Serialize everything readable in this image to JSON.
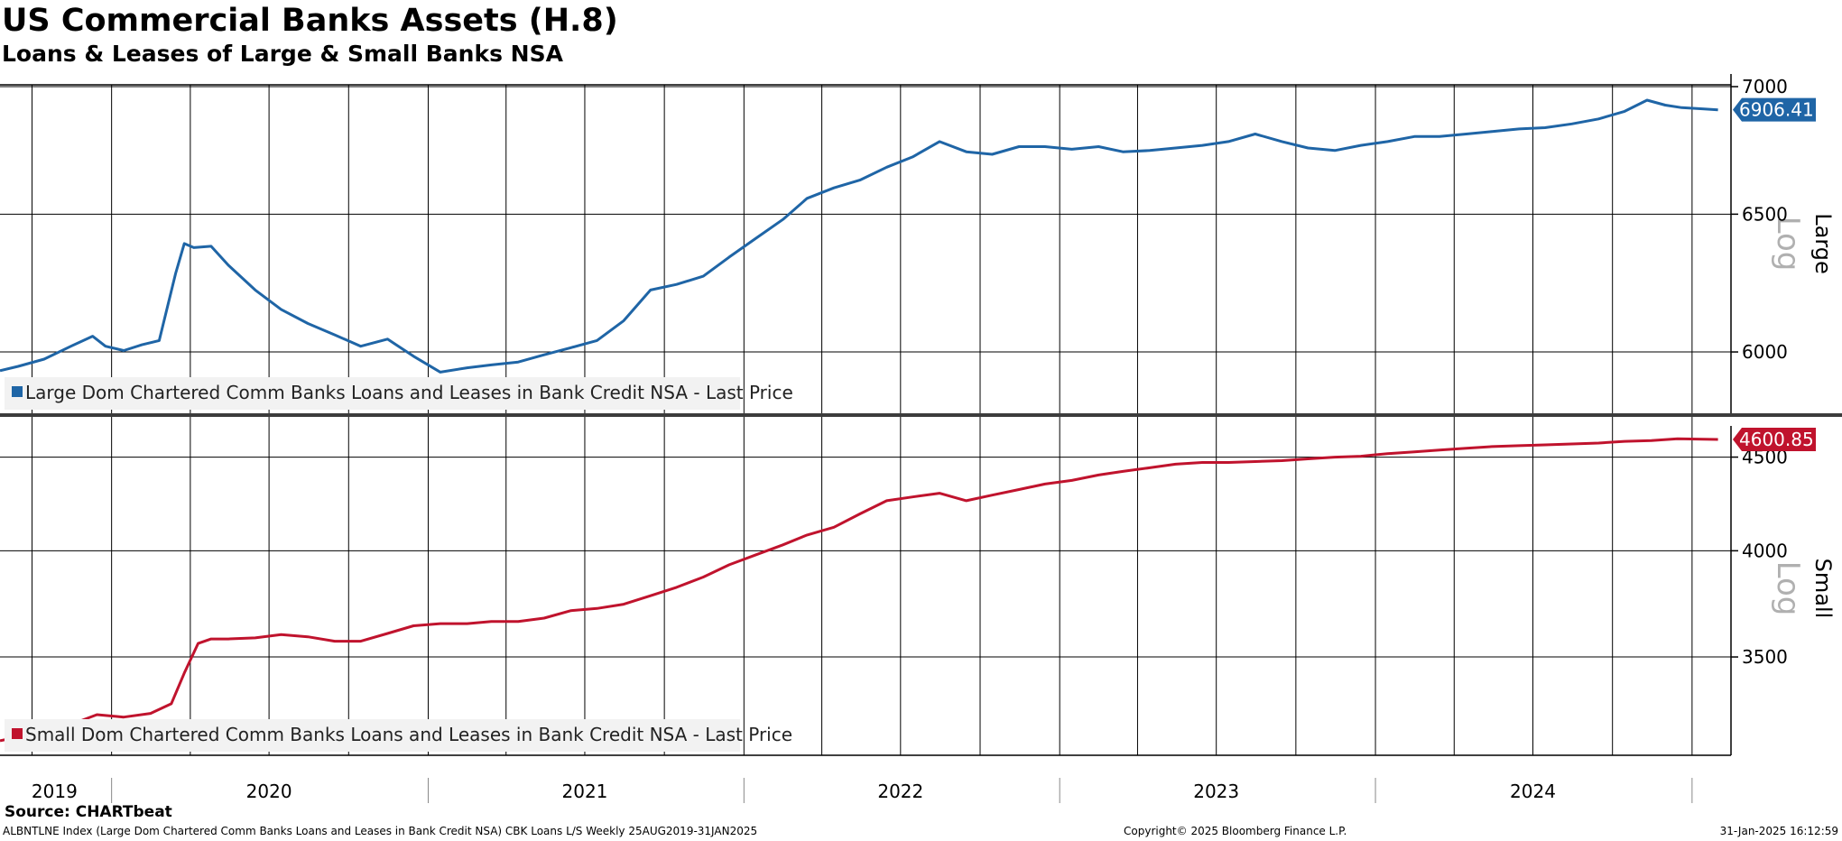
{
  "title": "US Commercial Banks Assets (H.8)",
  "subtitle": "Loans & Leases of Large & Small Banks NSA",
  "source": "Source: CHARTbeat",
  "footer": {
    "left": "ALBNTLNE Index (Large Dom Chartered Comm Banks Loans and Leases in Bank Credit NSA) CBK Loans L/S  Weekly 25AUG2019-31JAN2025",
    "center": "Copyright© 2025 Bloomberg Finance L.P.",
    "right": "31-Jan-2025 16:12:59"
  },
  "colors": {
    "large": "#1f65a6",
    "small": "#c0132d"
  },
  "chart_data": [
    {
      "type": "line",
      "panel_label": "Large",
      "scale_label": "Log",
      "scale": "log",
      "ylim": [
        5790,
        7000
      ],
      "yticks": [
        6000,
        6500,
        7000
      ],
      "last_value_label": "6906.41",
      "legend": "Large Dom Chartered Comm Banks Loans and Leases in Bank Credit NSA - Last Price",
      "series": [
        {
          "name": "Large Dom Chartered Comm Banks Loans and Leases in Bank Credit NSA - Last Price",
          "x": [
            "2019-08-25",
            "2019-09-15",
            "2019-10-15",
            "2019-11-15",
            "2019-12-10",
            "2019-12-25",
            "2020-01-15",
            "2020-02-05",
            "2020-02-25",
            "2020-03-15",
            "2020-03-25",
            "2020-04-05",
            "2020-04-25",
            "2020-05-15",
            "2020-06-15",
            "2020-07-15",
            "2020-08-15",
            "2020-09-15",
            "2020-10-15",
            "2020-11-15",
            "2020-12-15",
            "2021-01-15",
            "2021-02-15",
            "2021-03-15",
            "2021-04-15",
            "2021-05-15",
            "2021-06-15",
            "2021-07-15",
            "2021-08-15",
            "2021-09-15",
            "2021-10-15",
            "2021-11-15",
            "2021-12-15",
            "2022-01-15",
            "2022-02-15",
            "2022-03-15",
            "2022-04-15",
            "2022-05-15",
            "2022-06-15",
            "2022-07-15",
            "2022-08-15",
            "2022-09-15",
            "2022-10-15",
            "2022-11-15",
            "2022-12-15",
            "2023-01-15",
            "2023-02-15",
            "2023-03-15",
            "2023-04-15",
            "2023-05-15",
            "2023-06-15",
            "2023-07-15",
            "2023-08-15",
            "2023-09-15",
            "2023-10-15",
            "2023-11-15",
            "2023-12-15",
            "2024-01-15",
            "2024-02-15",
            "2024-03-15",
            "2024-04-15",
            "2024-05-15",
            "2024-06-15",
            "2024-07-15",
            "2024-08-15",
            "2024-09-15",
            "2024-10-15",
            "2024-11-10",
            "2024-12-01",
            "2024-12-20",
            "2025-01-15",
            "2025-01-31"
          ],
          "values": [
            5935,
            5950,
            5975,
            6020,
            6055,
            6020,
            6005,
            6025,
            6040,
            6280,
            6390,
            6375,
            6380,
            6310,
            6220,
            6150,
            6100,
            6060,
            6020,
            6045,
            5985,
            5930,
            5945,
            5955,
            5965,
            5990,
            6015,
            6040,
            6110,
            6220,
            6240,
            6270,
            6340,
            6410,
            6480,
            6560,
            6600,
            6630,
            6680,
            6720,
            6780,
            6740,
            6730,
            6760,
            6760,
            6750,
            6760,
            6740,
            6745,
            6755,
            6765,
            6780,
            6810,
            6780,
            6755,
            6745,
            6765,
            6780,
            6800,
            6800,
            6810,
            6820,
            6830,
            6835,
            6850,
            6870,
            6900,
            6945,
            6925,
            6915,
            6910,
            6906.41
          ]
        }
      ]
    },
    {
      "type": "line",
      "panel_label": "Small",
      "scale_label": "Log",
      "scale": "log",
      "ylim": [
        3100,
        4680
      ],
      "yticks": [
        3500,
        4000,
        4500
      ],
      "last_value_label": "4600.85",
      "legend": "Small Dom Chartered Comm Banks Loans and Leases in Bank Credit NSA - Last Price",
      "series": [
        {
          "name": "Small Dom Chartered Comm Banks Loans and Leases in Bank Credit NSA - Last Price",
          "x": [
            "2019-08-25",
            "2019-09-15",
            "2019-10-15",
            "2019-11-15",
            "2019-12-15",
            "2020-01-15",
            "2020-02-15",
            "2020-03-10",
            "2020-03-25",
            "2020-04-10",
            "2020-04-25",
            "2020-05-15",
            "2020-06-15",
            "2020-07-15",
            "2020-08-15",
            "2020-09-15",
            "2020-10-15",
            "2020-11-15",
            "2020-12-15",
            "2021-01-15",
            "2021-02-15",
            "2021-03-15",
            "2021-04-15",
            "2021-05-15",
            "2021-06-15",
            "2021-07-15",
            "2021-08-15",
            "2021-09-15",
            "2021-10-15",
            "2021-11-15",
            "2021-12-15",
            "2022-01-15",
            "2022-02-15",
            "2022-03-15",
            "2022-04-15",
            "2022-05-15",
            "2022-06-15",
            "2022-07-15",
            "2022-08-15",
            "2022-09-15",
            "2022-10-15",
            "2022-11-15",
            "2022-12-15",
            "2023-01-15",
            "2023-02-15",
            "2023-03-15",
            "2023-04-15",
            "2023-05-15",
            "2023-06-15",
            "2023-07-15",
            "2023-08-15",
            "2023-09-15",
            "2023-10-15",
            "2023-11-15",
            "2023-12-15",
            "2024-01-15",
            "2024-02-15",
            "2024-03-15",
            "2024-04-15",
            "2024-05-15",
            "2024-06-15",
            "2024-07-15",
            "2024-08-15",
            "2024-09-15",
            "2024-10-15",
            "2024-11-15",
            "2024-12-15",
            "2025-01-15",
            "2025-01-31"
          ],
          "values": [
            3150,
            3165,
            3185,
            3215,
            3255,
            3245,
            3260,
            3300,
            3430,
            3560,
            3580,
            3580,
            3585,
            3600,
            3590,
            3570,
            3570,
            3605,
            3640,
            3650,
            3650,
            3660,
            3660,
            3675,
            3710,
            3720,
            3740,
            3780,
            3820,
            3870,
            3930,
            3980,
            4030,
            4080,
            4120,
            4190,
            4260,
            4280,
            4300,
            4260,
            4290,
            4320,
            4350,
            4370,
            4400,
            4420,
            4440,
            4460,
            4470,
            4470,
            4475,
            4480,
            4490,
            4500,
            4505,
            4520,
            4530,
            4540,
            4550,
            4560,
            4565,
            4570,
            4575,
            4580,
            4590,
            4595,
            4605,
            4602,
            4600.85
          ]
        }
      ]
    }
  ],
  "x_axis": {
    "range": [
      "2019-08-25",
      "2025-02-15"
    ],
    "year_labels": [
      {
        "label": "2019",
        "center": "2019-10-27"
      },
      {
        "label": "2020",
        "center": "2020-07-01"
      },
      {
        "label": "2021",
        "center": "2021-07-01"
      },
      {
        "label": "2022",
        "center": "2022-07-01"
      },
      {
        "label": "2023",
        "center": "2023-07-01"
      },
      {
        "label": "2024",
        "center": "2024-07-01"
      }
    ],
    "year_boundaries": [
      "2020-01-01",
      "2021-01-01",
      "2022-01-01",
      "2023-01-01",
      "2024-01-01",
      "2025-01-01"
    ]
  }
}
